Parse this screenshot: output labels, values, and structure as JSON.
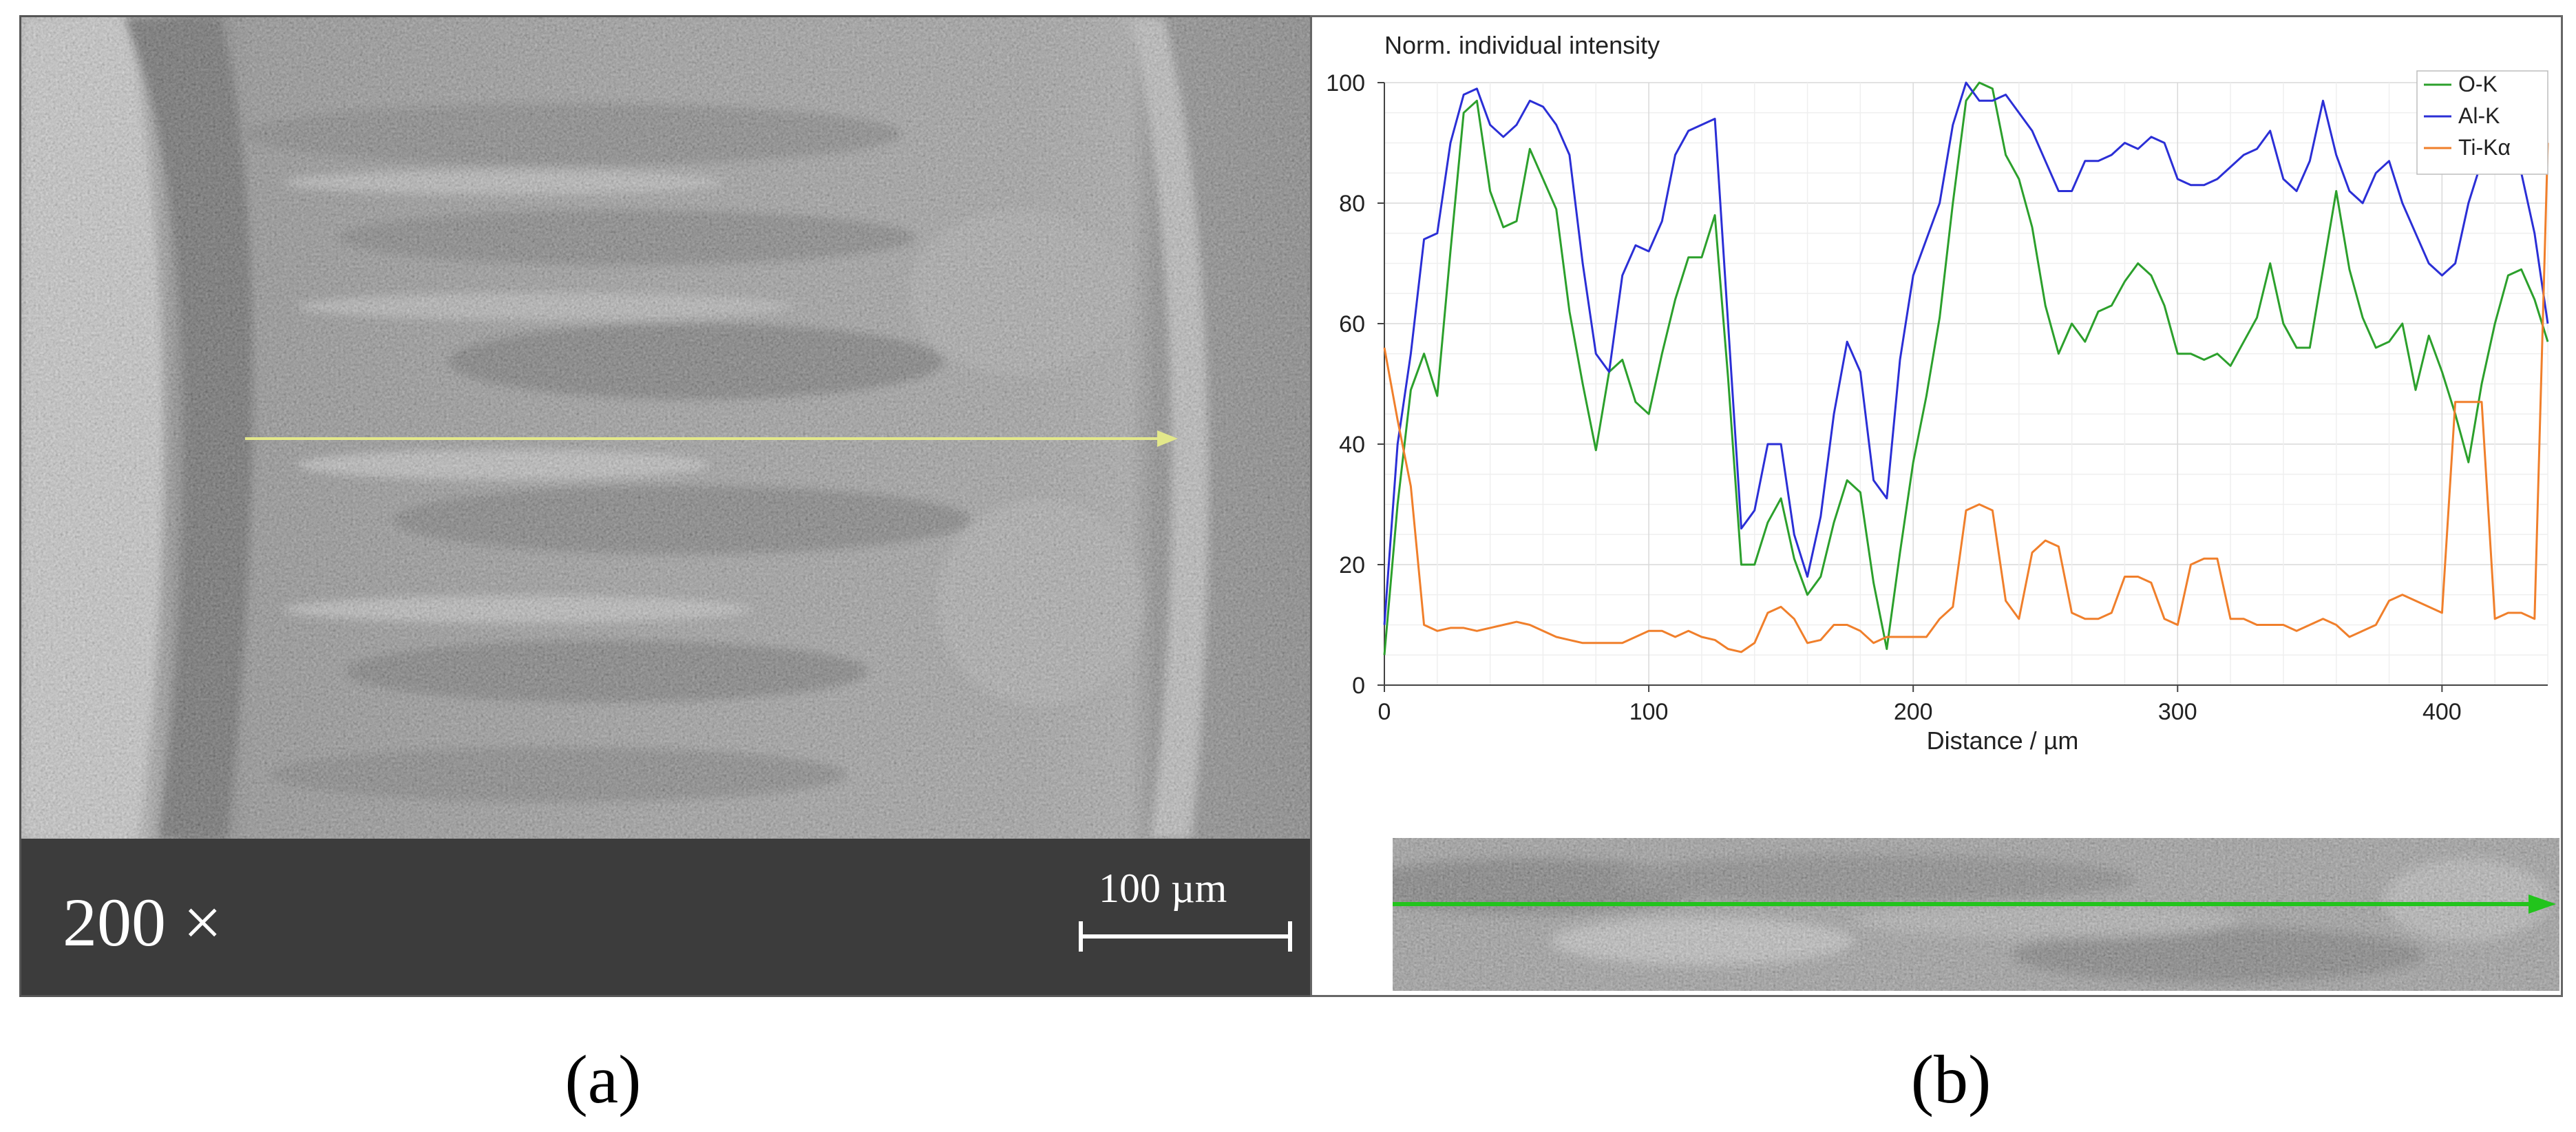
{
  "panel_a": {
    "magnification": "200 ×",
    "scale_bar": "100 µm",
    "label": "(a)"
  },
  "panel_b": {
    "label": "(b)"
  },
  "colors": {
    "O-K": "#2ca02c",
    "Al-K": "#2b2fd6",
    "Ti-Kα": "#f07f2b",
    "linescan_a": "#e3e88a",
    "linescan_b": "#22c41c"
  },
  "chart_data": {
    "type": "line",
    "title": "Norm. individual intensity",
    "xlabel": "Distance / µm",
    "ylabel": "",
    "xlim": [
      0,
      440
    ],
    "ylim": [
      0,
      100
    ],
    "xticks": [
      0,
      100,
      200,
      300,
      400
    ],
    "yticks": [
      0,
      20,
      40,
      60,
      80,
      100
    ],
    "grid": true,
    "legend_position": "top-right",
    "series": [
      {
        "name": "O-K",
        "x": [
          0,
          5,
          10,
          15,
          20,
          25,
          30,
          35,
          40,
          45,
          50,
          55,
          60,
          65,
          70,
          75,
          80,
          85,
          90,
          95,
          100,
          105,
          110,
          115,
          120,
          125,
          130,
          135,
          140,
          145,
          150,
          155,
          160,
          165,
          170,
          175,
          180,
          185,
          190,
          195,
          200,
          205,
          210,
          215,
          220,
          225,
          230,
          235,
          240,
          245,
          250,
          255,
          260,
          265,
          270,
          275,
          280,
          285,
          290,
          295,
          300,
          305,
          310,
          315,
          320,
          325,
          330,
          335,
          340,
          345,
          350,
          355,
          360,
          365,
          370,
          375,
          380,
          385,
          390,
          395,
          400,
          405,
          410,
          415,
          420,
          425,
          430,
          435,
          440
        ],
        "values": [
          5,
          30,
          49,
          55,
          48,
          72,
          95,
          97,
          82,
          76,
          77,
          89,
          84,
          79,
          62,
          50,
          39,
          52,
          54,
          47,
          45,
          55,
          64,
          71,
          71,
          78,
          51,
          20,
          20,
          27,
          31,
          21,
          15,
          18,
          27,
          34,
          32,
          17,
          6,
          22,
          37,
          48,
          61,
          80,
          97,
          100,
          99,
          88,
          84,
          76,
          63,
          55,
          60,
          57,
          62,
          63,
          67,
          70,
          68,
          63,
          55,
          55,
          54,
          55,
          53,
          57,
          61,
          70,
          60,
          56,
          56,
          69,
          82,
          69,
          61,
          56,
          57,
          60,
          49,
          58,
          52,
          45,
          37,
          50,
          60,
          68,
          69,
          64,
          57
        ]
      },
      {
        "name": "Al-K",
        "x": [
          0,
          5,
          10,
          15,
          20,
          25,
          30,
          35,
          40,
          45,
          50,
          55,
          60,
          65,
          70,
          75,
          80,
          85,
          90,
          95,
          100,
          105,
          110,
          115,
          120,
          125,
          130,
          135,
          140,
          145,
          150,
          155,
          160,
          165,
          170,
          175,
          180,
          185,
          190,
          195,
          200,
          205,
          210,
          215,
          220,
          225,
          230,
          235,
          240,
          245,
          250,
          255,
          260,
          265,
          270,
          275,
          280,
          285,
          290,
          295,
          300,
          305,
          310,
          315,
          320,
          325,
          330,
          335,
          340,
          345,
          350,
          355,
          360,
          365,
          370,
          375,
          380,
          385,
          390,
          395,
          400,
          405,
          410,
          415,
          420,
          425,
          430,
          435,
          440
        ],
        "values": [
          10,
          40,
          55,
          74,
          75,
          90,
          98,
          99,
          93,
          91,
          93,
          97,
          96,
          93,
          88,
          70,
          55,
          52,
          68,
          73,
          72,
          77,
          88,
          92,
          93,
          94,
          60,
          26,
          29,
          40,
          40,
          25,
          18,
          28,
          45,
          57,
          52,
          34,
          31,
          54,
          68,
          74,
          80,
          93,
          100,
          97,
          97,
          98,
          95,
          92,
          87,
          82,
          82,
          87,
          87,
          88,
          90,
          89,
          91,
          90,
          84,
          83,
          83,
          84,
          86,
          88,
          89,
          92,
          84,
          82,
          87,
          97,
          88,
          82,
          80,
          85,
          87,
          80,
          75,
          70,
          68,
          70,
          80,
          87,
          88,
          90,
          85,
          75,
          60
        ]
      },
      {
        "name": "Ti-Kα",
        "x": [
          0,
          5,
          10,
          15,
          20,
          25,
          30,
          35,
          40,
          45,
          50,
          55,
          60,
          65,
          70,
          75,
          80,
          85,
          90,
          95,
          100,
          105,
          110,
          115,
          120,
          125,
          130,
          135,
          140,
          145,
          150,
          155,
          160,
          165,
          170,
          175,
          180,
          185,
          190,
          195,
          200,
          205,
          210,
          215,
          220,
          225,
          230,
          235,
          240,
          245,
          250,
          255,
          260,
          265,
          270,
          275,
          280,
          285,
          290,
          295,
          300,
          305,
          310,
          315,
          320,
          325,
          330,
          335,
          340,
          345,
          350,
          355,
          360,
          365,
          370,
          375,
          380,
          385,
          390,
          395,
          400,
          405,
          410,
          415,
          420,
          425,
          430,
          435,
          440
        ],
        "values": [
          56,
          44,
          33,
          10,
          9,
          9.5,
          9.5,
          9,
          9.5,
          10,
          10.5,
          10,
          9,
          8,
          7.5,
          7,
          7,
          7,
          7,
          8,
          9,
          9,
          8,
          9,
          8,
          7.5,
          6,
          5.5,
          7,
          12,
          13,
          11,
          7,
          7.5,
          10,
          10,
          9,
          7,
          8,
          8,
          8,
          8,
          11,
          13,
          29,
          30,
          29,
          14,
          11,
          22,
          24,
          23,
          12,
          11,
          11,
          12,
          18,
          18,
          17,
          11,
          10,
          20,
          21,
          21,
          11,
          11,
          10,
          10,
          10,
          9,
          10,
          11,
          10,
          8,
          9,
          10,
          14,
          15,
          14,
          13,
          12,
          47,
          47,
          47,
          11,
          12,
          12,
          11,
          90
        ]
      }
    ]
  }
}
